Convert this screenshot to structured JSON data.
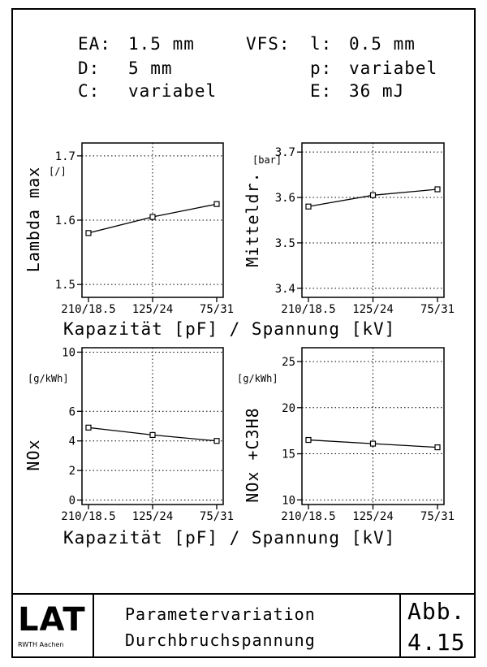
{
  "header": {
    "row1": [
      "EA:",
      "1.5 mm",
      "VFS:",
      "l:",
      "0.5 mm"
    ],
    "row2": [
      "D:",
      "5 mm",
      "p:",
      "variabel"
    ],
    "row3": [
      "C:",
      "variabel",
      "E:",
      "36 mJ"
    ]
  },
  "xlabel_top": "Kapazität [pF] / Spannung [kV]",
  "xlabel_bottom": "Kapazität [pF] / Spannung [kV]",
  "chart_data": [
    {
      "type": "line",
      "categories": [
        "210/18.5",
        "125/24",
        "75/31"
      ],
      "values": [
        1.58,
        1.605,
        1.625
      ],
      "ylabel": "Lambda max",
      "unit": "[/]",
      "ylim": [
        1.48,
        1.72
      ],
      "yticks": [
        "1.5",
        "1.6",
        "1.7"
      ],
      "grid": true
    },
    {
      "type": "line",
      "categories": [
        "210/18.5",
        "125/24",
        "75/31"
      ],
      "values": [
        3.58,
        3.605,
        3.618
      ],
      "ylabel": "Mitteldr.",
      "unit": "[bar]",
      "ylim": [
        3.38,
        3.72
      ],
      "yticks": [
        "3.4",
        "3.5",
        "3.6",
        "3.7"
      ],
      "grid": true
    },
    {
      "type": "line",
      "categories": [
        "210/18.5",
        "125/24",
        "75/31"
      ],
      "values": [
        4.9,
        4.4,
        4.0
      ],
      "ylabel": "NOx",
      "unit": "[g/kWh]",
      "ylim": [
        -0.3,
        10.3
      ],
      "yticks": [
        "0",
        "2",
        "4",
        "6",
        "10"
      ],
      "grid": true
    },
    {
      "type": "line",
      "categories": [
        "210/18.5",
        "125/24",
        "75/31"
      ],
      "values": [
        16.5,
        16.1,
        15.7
      ],
      "ylabel": "NOx +C3H8",
      "unit": "[g/kWh]",
      "ylim": [
        9.5,
        26.5
      ],
      "yticks": [
        "10",
        "15",
        "20",
        "25"
      ],
      "grid": true
    }
  ],
  "footer": {
    "logo_text": "LAT",
    "logo_sub": "RWTH Aachen",
    "title_line1": "Parametervariation",
    "title_line2": "Durchbruchspannung",
    "abb_line1": "Abb.",
    "abb_line2": "4.15"
  }
}
